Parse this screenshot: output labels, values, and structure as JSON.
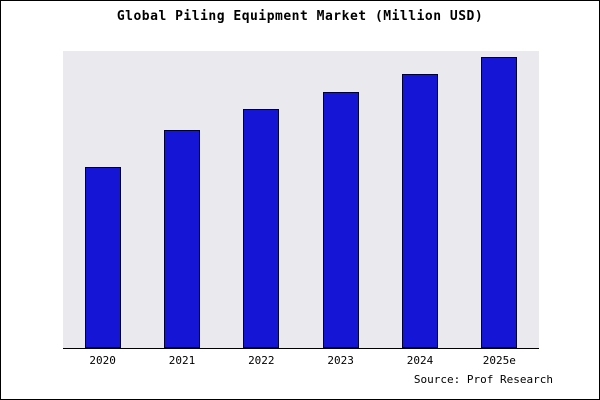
{
  "chart_data": {
    "type": "bar",
    "title": "Global Piling Equipment Market (Million USD)",
    "categories": [
      "2020",
      "2021",
      "2022",
      "2023",
      "2024",
      "2025e"
    ],
    "values": [
      62,
      75,
      82,
      88,
      94,
      100
    ],
    "xlabel": "",
    "ylabel": "",
    "ylim": [
      0,
      102
    ],
    "grid": false,
    "legend": false
  },
  "source": {
    "label": "Source: Prof Research"
  },
  "colors": {
    "bar_fill": "#1515d6",
    "bar_border": "#000033",
    "plot_bg": "#e9e9ee",
    "frame_border": "#000000",
    "text": "#000000"
  }
}
